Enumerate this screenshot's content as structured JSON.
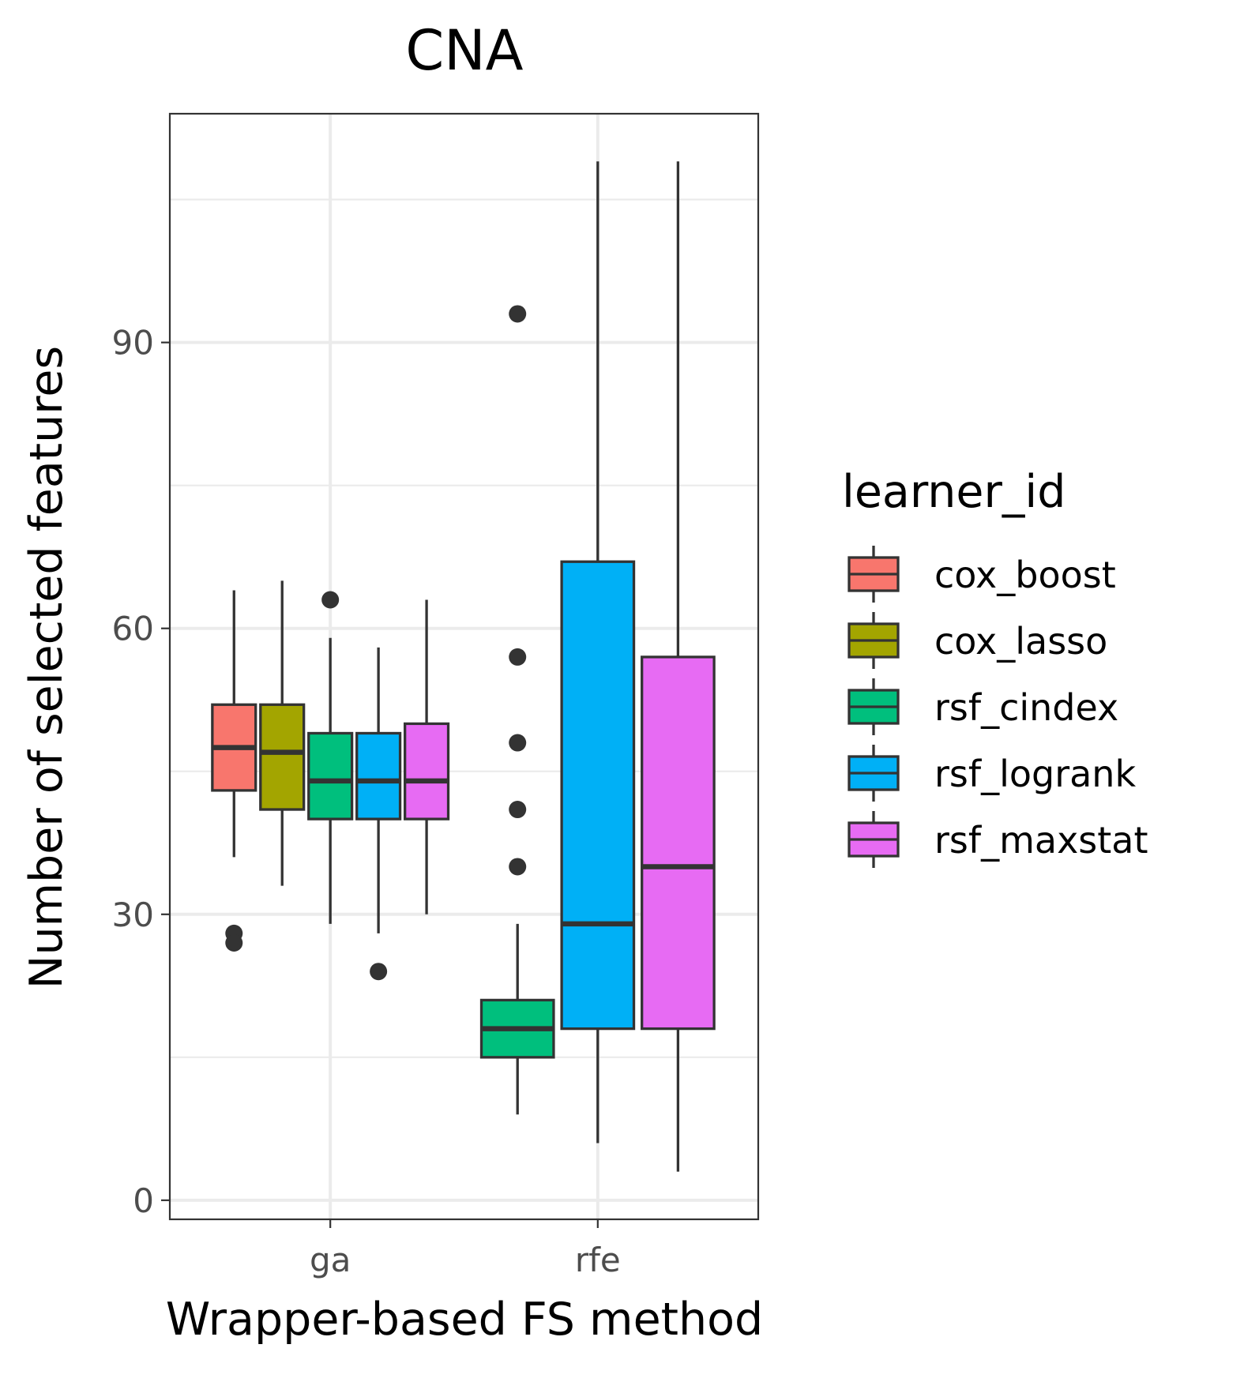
{
  "chart_data": {
    "type": "boxplot",
    "title": "CNA",
    "xlabel": "Wrapper-based FS method",
    "ylabel": "Number of selected features",
    "categories": [
      "ga",
      "rfe"
    ],
    "ylim": [
      -2,
      114
    ],
    "yticks": [
      0,
      30,
      60,
      90
    ],
    "ytick_labels": [
      "0",
      "30",
      "60",
      "90"
    ],
    "grid": true,
    "legend": {
      "title": "learner_id",
      "position": "right"
    },
    "series": [
      {
        "name": "cox_boost",
        "color": "#F8766D",
        "boxes": [
          {
            "category": "ga",
            "whisker_low": 36,
            "q1": 43,
            "median": 47.5,
            "q3": 52,
            "whisker_high": 64,
            "outliers": [
              28,
              27
            ]
          },
          null
        ]
      },
      {
        "name": "cox_lasso",
        "color": "#A3A500",
        "boxes": [
          {
            "category": "ga",
            "whisker_low": 33,
            "q1": 41,
            "median": 47,
            "q3": 52,
            "whisker_high": 65,
            "outliers": []
          },
          null
        ]
      },
      {
        "name": "rsf_cindex",
        "color": "#00BF7D",
        "boxes": [
          {
            "category": "ga",
            "whisker_low": 29,
            "q1": 40,
            "median": 44,
            "q3": 49,
            "whisker_high": 59,
            "outliers": [
              63
            ]
          },
          {
            "category": "rfe",
            "whisker_low": 9,
            "q1": 15,
            "median": 18,
            "q3": 21,
            "whisker_high": 29,
            "outliers": [
              93,
              57,
              48,
              41,
              35
            ]
          }
        ]
      },
      {
        "name": "rsf_logrank",
        "color": "#00B0F6",
        "boxes": [
          {
            "category": "ga",
            "whisker_low": 28,
            "q1": 40,
            "median": 44,
            "q3": 49,
            "whisker_high": 58,
            "outliers": [
              24
            ]
          },
          {
            "category": "rfe",
            "whisker_low": 6,
            "q1": 18,
            "median": 29,
            "q3": 67,
            "whisker_high": 109,
            "outliers": []
          }
        ]
      },
      {
        "name": "rsf_maxstat",
        "color": "#E76BF3",
        "boxes": [
          {
            "category": "ga",
            "whisker_low": 30,
            "q1": 40,
            "median": 44,
            "q3": 50,
            "whisker_high": 63,
            "outliers": []
          },
          {
            "category": "rfe",
            "whisker_low": 3,
            "q1": 18,
            "median": 35,
            "q3": 57,
            "whisker_high": 109,
            "outliers": []
          }
        ]
      }
    ]
  }
}
